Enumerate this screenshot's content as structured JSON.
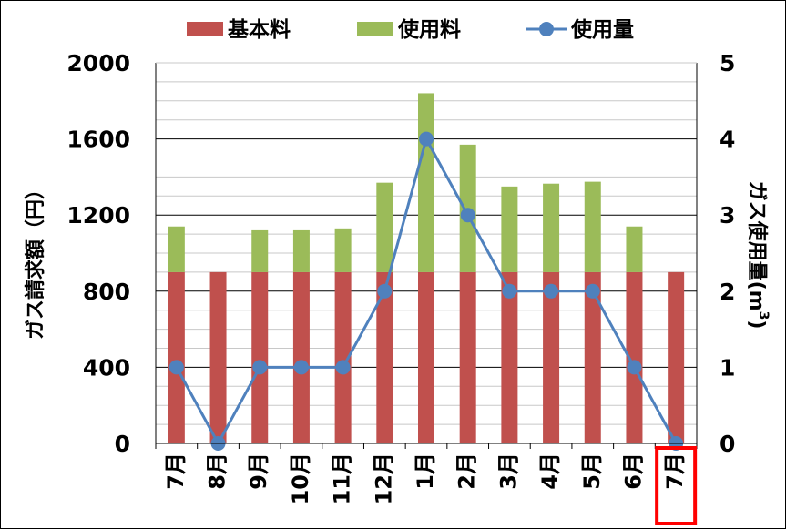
{
  "chart_data": {
    "type": "bar",
    "stacked": true,
    "categories": [
      "7月",
      "8月",
      "9月",
      "10月",
      "11月",
      "12月",
      "1月",
      "2月",
      "3月",
      "4月",
      "5月",
      "6月",
      "7月"
    ],
    "highlighted_category_index": 12,
    "series": [
      {
        "name": "基本料",
        "kind": "bar",
        "axis": "left",
        "color": "#c0504d",
        "values": [
          900,
          900,
          900,
          900,
          900,
          900,
          900,
          900,
          900,
          900,
          900,
          900,
          900
        ]
      },
      {
        "name": "使用料",
        "kind": "bar",
        "axis": "left",
        "color": "#9bbb59",
        "values": [
          240,
          0,
          220,
          220,
          230,
          470,
          940,
          670,
          450,
          465,
          475,
          240,
          0
        ]
      },
      {
        "name": "使用量",
        "kind": "line",
        "axis": "right",
        "color": "#4f81bd",
        "values": [
          1,
          0,
          1,
          1,
          1,
          2,
          4,
          3,
          2,
          2,
          2,
          1,
          0
        ]
      }
    ],
    "ylabel": "ガス請求額（円）",
    "ylabel_right_main": "ガス使用量(m",
    "ylabel_right_sup": "3",
    "ylabel_right_close": ")",
    "ylim": [
      0,
      2000
    ],
    "yticks": [
      "0",
      "400",
      "800",
      "1200",
      "1600",
      "2000"
    ],
    "ylim_right": [
      0,
      5
    ],
    "yticks_right": [
      "0",
      "1",
      "2",
      "3",
      "4",
      "5"
    ],
    "grid": true,
    "legend": "top",
    "highlight_color": "#ff0000"
  }
}
